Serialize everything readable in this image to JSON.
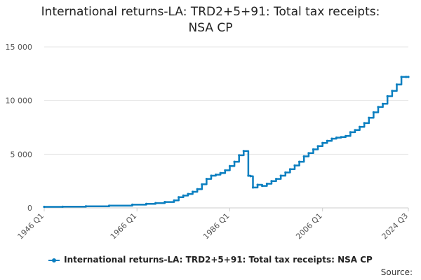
{
  "title_line1": "International returns-LA: TRD2+5+91: Total tax receipts:",
  "title_line2": "NSA CP",
  "source_label": "Source:",
  "chart_data": {
    "type": "line",
    "title": "International returns-LA: TRD2+5+91: Total tax receipts: NSA CP",
    "xlabel": "",
    "ylabel": "",
    "ylim": [
      0,
      15000
    ],
    "y_ticks": [
      0,
      5000,
      10000,
      15000
    ],
    "y_tick_labels": [
      "0",
      "5 000",
      "10 000",
      "15 000"
    ],
    "x_tick_labels": [
      "1946 Q1",
      "1966 Q1",
      "1986 Q1",
      "2006 Q1",
      "2024 Q3"
    ],
    "x_range": [
      1946.0,
      2024.5
    ],
    "grid": true,
    "legend_position": "bottom",
    "series": [
      {
        "name": "International returns-LA: TRD2+5+91: Total tax receipts: NSA CP",
        "color": "#0b7fc0",
        "x": [
          "1946 Q1",
          "1950 Q1",
          "1955 Q1",
          "1960 Q1",
          "1965 Q1",
          "1968 Q1",
          "1970 Q1",
          "1972 Q1",
          "1974 Q1",
          "1975 Q1",
          "1976 Q1",
          "1977 Q1",
          "1978 Q1",
          "1979 Q1",
          "1980 Q1",
          "1981 Q1",
          "1982 Q1",
          "1983 Q1",
          "1984 Q1",
          "1985 Q1",
          "1986 Q1",
          "1987 Q1",
          "1988 Q1",
          "1989 Q1",
          "1990 Q1",
          "1990 Q3",
          "1991 Q1",
          "1992 Q1",
          "1993 Q1",
          "1994 Q1",
          "1995 Q1",
          "1996 Q1",
          "1997 Q1",
          "1998 Q1",
          "1999 Q1",
          "2000 Q1",
          "2001 Q1",
          "2002 Q1",
          "2003 Q1",
          "2004 Q1",
          "2005 Q1",
          "2006 Q1",
          "2007 Q1",
          "2008 Q1",
          "2009 Q1",
          "2010 Q1",
          "2011 Q1",
          "2012 Q1",
          "2013 Q1",
          "2014 Q1",
          "2015 Q1",
          "2016 Q1",
          "2017 Q1",
          "2018 Q1",
          "2019 Q1",
          "2020 Q1",
          "2021 Q1",
          "2022 Q1",
          "2023 Q1",
          "2024 Q1",
          "2024 Q3"
        ],
        "x_num": [
          1946.0,
          1950.0,
          1955.0,
          1960.0,
          1965.0,
          1968.0,
          1970.0,
          1972.0,
          1974.0,
          1975.0,
          1976.0,
          1977.0,
          1978.0,
          1979.0,
          1980.0,
          1981.0,
          1982.0,
          1983.0,
          1984.0,
          1985.0,
          1986.0,
          1987.0,
          1988.0,
          1989.0,
          1990.0,
          1990.5,
          1991.0,
          1992.0,
          1993.0,
          1994.0,
          1995.0,
          1996.0,
          1997.0,
          1998.0,
          1999.0,
          2000.0,
          2001.0,
          2002.0,
          2003.0,
          2004.0,
          2005.0,
          2006.0,
          2007.0,
          2008.0,
          2009.0,
          2010.0,
          2011.0,
          2012.0,
          2013.0,
          2014.0,
          2015.0,
          2016.0,
          2017.0,
          2018.0,
          2019.0,
          2020.0,
          2021.0,
          2022.0,
          2023.0,
          2024.0,
          2024.5
        ],
        "values": [
          100,
          110,
          150,
          210,
          300,
          380,
          450,
          550,
          700,
          1000,
          1150,
          1300,
          1500,
          1750,
          2200,
          2700,
          3000,
          3100,
          3250,
          3500,
          3900,
          4300,
          4900,
          5300,
          3000,
          2950,
          1900,
          2150,
          2050,
          2250,
          2500,
          2700,
          3000,
          3300,
          3600,
          3950,
          4300,
          4800,
          5100,
          5450,
          5750,
          6050,
          6250,
          6450,
          6550,
          6600,
          6700,
          7050,
          7250,
          7550,
          7900,
          8400,
          8900,
          9400,
          9700,
          10400,
          10900,
          11500,
          12200,
          12200,
          12200
        ]
      }
    ]
  }
}
